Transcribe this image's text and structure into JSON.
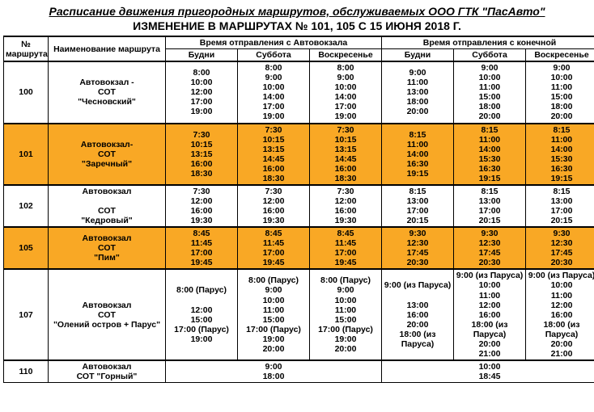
{
  "title": "Расписание движения пригородных маршрутов, обслуживаемых ООО ГТК \"ПасАвто\"",
  "subtitle": "ИЗМЕНЕНИЕ В МАРШРУТАХ № 101, 105  С 15 ИЮНЯ 2018 Г.",
  "headers": {
    "num": "№ маршрута",
    "name": "Наименование маршрута",
    "dep_station": "Время отправления с Автовокзала",
    "dep_terminal": "Время отправления с конечной",
    "weekday": "Будни",
    "saturday": "Суббота",
    "sunday": "Воскресенье"
  },
  "routes": [
    {
      "num": "100",
      "name": "Автовокзал -\nСОТ\n\"Чесновский\"",
      "highlight": false,
      "station": {
        "weekday": "8:00\n10:00\n12:00\n17:00\n19:00",
        "saturday": "8:00\n9:00\n10:00\n14:00\n17:00\n19:00",
        "sunday": "8:00\n9:00\n10:00\n14:00\n17:00\n19:00"
      },
      "terminal": {
        "weekday": "9:00\n11:00\n13:00\n18:00\n20:00",
        "saturday": "9:00\n10:00\n11:00\n15:00\n18:00\n20:00",
        "sunday": "9:00\n10:00\n11:00\n15:00\n18:00\n20:00"
      }
    },
    {
      "num": "101",
      "name": "Автовокзал-\nСОТ\n\"Заречный\"",
      "highlight": true,
      "station": {
        "weekday": "7:30\n10:15\n13:15\n16:00\n18:30",
        "saturday": "7:30\n10:15\n13:15\n14:45\n16:00\n18:30",
        "sunday": "7:30\n10:15\n13:15\n14:45\n16:00\n18:30"
      },
      "terminal": {
        "weekday": "8:15\n11:00\n14:00\n16:30\n19:15",
        "saturday": "8:15\n11:00\n14:00\n15:30\n16:30\n19:15",
        "sunday": "8:15\n11:00\n14:00\n15:30\n16:30\n19:15"
      }
    },
    {
      "num": "102",
      "name": "Автовокзал\n \nСОТ\n\"Кедровый\"",
      "highlight": false,
      "station": {
        "weekday": "7:30\n12:00\n16:00\n19:30",
        "saturday": "7:30\n12:00\n16:00\n19:30",
        "sunday": "7:30\n12:00\n16:00\n19:30"
      },
      "terminal": {
        "weekday": "8:15\n13:00\n17:00\n20:15",
        "saturday": "8:15\n13:00\n17:00\n20:15",
        "sunday": "8:15\n13:00\n17:00\n20:15"
      }
    },
    {
      "num": "105",
      "name": "Автовокзал\nСОТ\n\"Пим\"",
      "highlight": true,
      "station": {
        "weekday": "8:45\n11:45\n17:00\n19:45",
        "saturday": "8:45\n11:45\n17:00\n19:45",
        "sunday": "8:45\n11:45\n17:00\n19:45"
      },
      "terminal": {
        "weekday": "9:30\n12:30\n17:45\n20:30",
        "saturday": "9:30\n12:30\n17:45\n20:30",
        "sunday": "9:30\n12:30\n17:45\n20:30"
      }
    },
    {
      "num": "107",
      "name": "Автовокзал\nСОТ\n\"Олений остров + Парус\"",
      "highlight": false,
      "station": {
        "weekday": "8:00 (Парус)\n \n12:00\n15:00\n17:00 (Парус)\n19:00",
        "saturday": "8:00 (Парус)\n9:00\n10:00\n11:00\n15:00\n17:00 (Парус)\n19:00\n20:00",
        "sunday": "8:00 (Парус)\n9:00\n10:00\n11:00\n15:00\n17:00 (Парус)\n19:00\n20:00"
      },
      "terminal": {
        "weekday": "9:00 (из Паруса)\n \n13:00\n16:00\n20:00\n18:00 (из Паруса)",
        "saturday": "9:00 (из Паруса)\n10:00\n11:00\n12:00\n16:00\n18:00 (из Паруса)\n20:00\n21:00",
        "sunday": "9:00 (из Паруса)\n10:00\n11:00\n12:00\n16:00\n18:00 (из Паруса)\n20:00\n21:00"
      }
    },
    {
      "num": "110",
      "name": "Автовокзал\nСОТ \"Горный\"",
      "highlight": false,
      "station": {
        "weekday": "9:00\n18:00",
        "saturday": "",
        "sunday": ""
      },
      "terminal": {
        "weekday": "10:00\n18:45",
        "saturday": "",
        "sunday": ""
      },
      "merge_station": true,
      "merge_terminal": true
    }
  ],
  "colors": {
    "highlight": "#f9a825",
    "border": "#000000",
    "background": "#ffffff"
  }
}
